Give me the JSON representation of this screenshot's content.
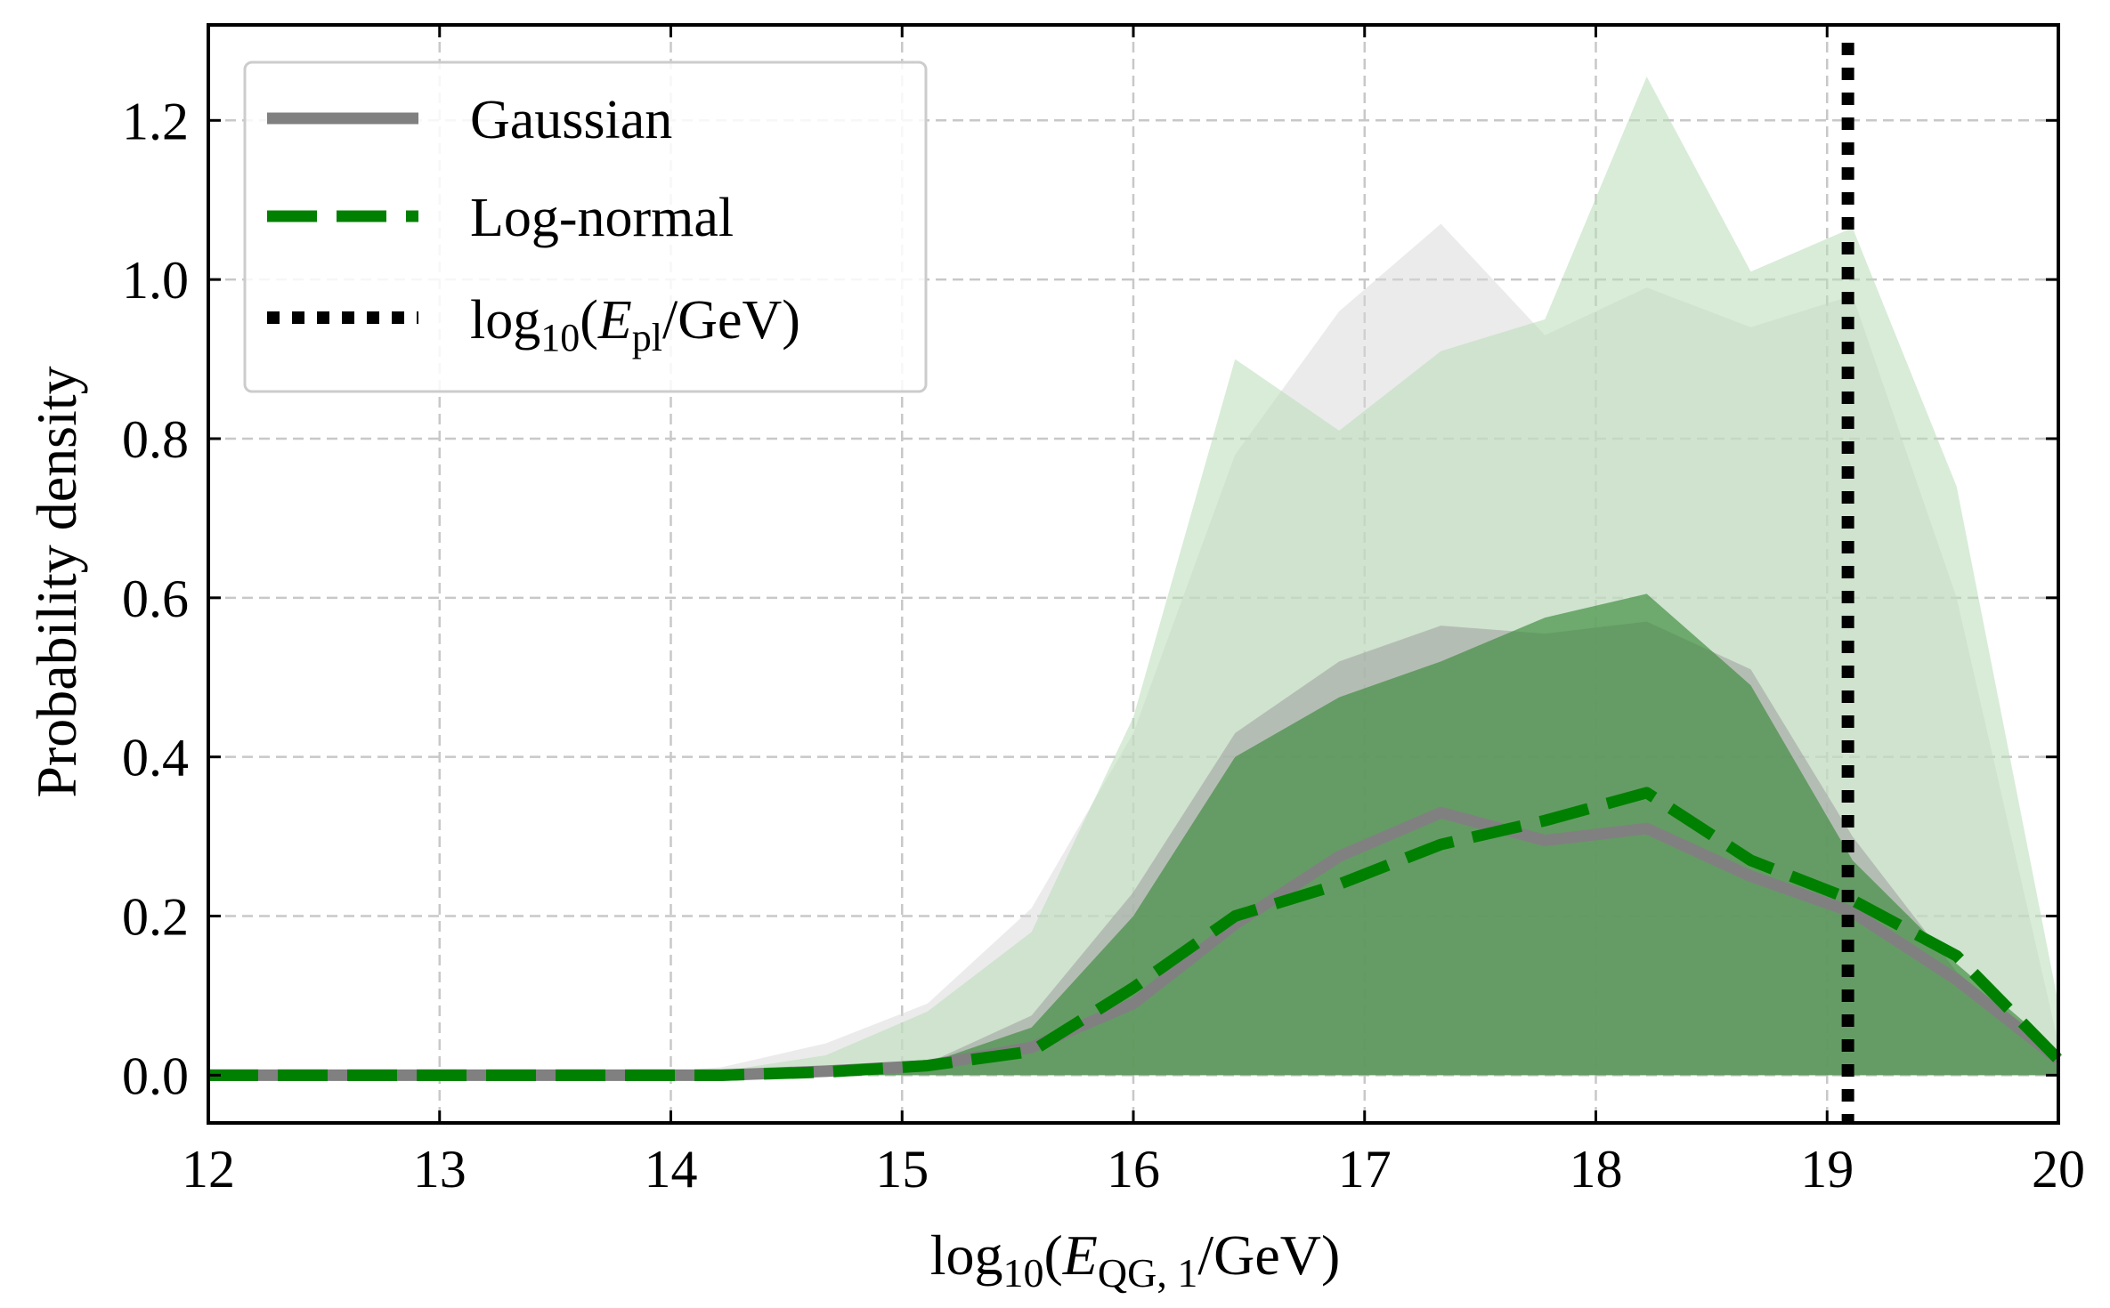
{
  "chart_data": {
    "type": "area",
    "title": "",
    "xlabel": {
      "prefix": "log",
      "sub": "10",
      "mid": "(",
      "var": "E",
      "varsub": "QG, 1",
      "suffix": "/GeV)"
    },
    "ylabel": "Probability density",
    "xlim": [
      12,
      20
    ],
    "ylim": [
      -0.06,
      1.32
    ],
    "xticks": [
      12,
      13,
      14,
      15,
      16,
      17,
      18,
      19,
      20
    ],
    "yticks": [
      0.0,
      0.2,
      0.4,
      0.6,
      0.8,
      1.0,
      1.2
    ],
    "xtick_labels": [
      "12",
      "13",
      "14",
      "15",
      "16",
      "17",
      "18",
      "19",
      "20"
    ],
    "ytick_labels": [
      "0.0",
      "0.2",
      "0.4",
      "0.6",
      "0.8",
      "1.0",
      "1.2"
    ],
    "grid": true,
    "legend_position": "top-left",
    "legend": [
      {
        "label": "Gaussian",
        "style": "solid",
        "color": "#808080"
      },
      {
        "label": "Log-normal",
        "style": "dashed",
        "color": "#008000"
      },
      {
        "label_prefix": "log",
        "label_sub": "10",
        "label_mid": "(",
        "label_var": "E",
        "label_varsub": "pl",
        "label_suffix": "/GeV)",
        "style": "dotted",
        "color": "#000000"
      }
    ],
    "x": [
      12.0,
      12.44,
      12.89,
      13.33,
      13.78,
      14.22,
      14.67,
      15.11,
      15.56,
      16.0,
      16.44,
      16.89,
      17.33,
      17.78,
      18.22,
      18.67,
      19.11,
      19.56,
      20.0
    ],
    "series": [
      {
        "name": "Gaussian",
        "color": "#808080",
        "median": [
          0.0,
          0.0,
          0.0,
          0.0,
          0.0,
          0.0,
          0.005,
          0.012,
          0.035,
          0.09,
          0.19,
          0.275,
          0.33,
          0.295,
          0.31,
          0.25,
          0.205,
          0.12,
          0.02
        ],
        "band_inner_upper": [
          0.0,
          0.0,
          0.0,
          0.0,
          0.0,
          0.001,
          0.006,
          0.015,
          0.075,
          0.23,
          0.43,
          0.52,
          0.565,
          0.555,
          0.57,
          0.51,
          0.3,
          0.13,
          0.02
        ],
        "band_outer_upper": [
          0.0,
          0.0,
          0.0,
          0.0,
          0.0,
          0.01,
          0.04,
          0.09,
          0.21,
          0.43,
          0.78,
          0.96,
          1.07,
          0.93,
          0.99,
          0.94,
          0.98,
          0.6,
          0.04
        ],
        "fill_inner_color": "#9e9e9e",
        "fill_outer_color": "#d8d8d8"
      },
      {
        "name": "Log-normal",
        "color": "#008000",
        "median": [
          0.0,
          0.0,
          0.0,
          0.0,
          0.0,
          0.0,
          0.004,
          0.012,
          0.03,
          0.11,
          0.2,
          0.24,
          0.29,
          0.32,
          0.355,
          0.27,
          0.22,
          0.15,
          0.02
        ],
        "band_inner_upper": [
          0.0,
          0.0,
          0.0,
          0.0,
          0.0,
          0.0,
          0.005,
          0.015,
          0.06,
          0.2,
          0.4,
          0.475,
          0.52,
          0.575,
          0.605,
          0.49,
          0.27,
          0.14,
          0.03
        ],
        "band_outer_upper": [
          0.0,
          0.0,
          0.0,
          0.0,
          0.0,
          0.005,
          0.025,
          0.08,
          0.18,
          0.45,
          0.9,
          0.81,
          0.91,
          0.95,
          1.255,
          1.01,
          1.065,
          0.74,
          0.09
        ],
        "fill_inner_color": "#3a8a3a",
        "fill_outer_color": "#b8dcb8"
      }
    ],
    "vline": {
      "x": 19.09,
      "color": "#000000",
      "style": "dotted"
    }
  }
}
